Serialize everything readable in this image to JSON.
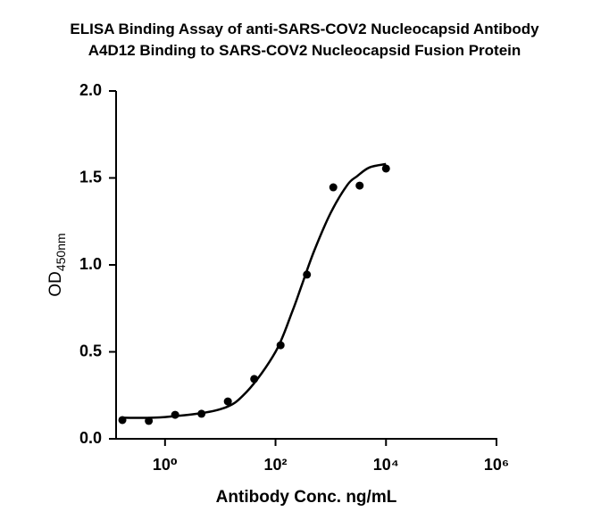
{
  "chart_data": {
    "type": "scatter",
    "title": [
      "ELISA Binding Assay of anti-SARS-COV2 Nucleocapsid Antibody",
      "A4D12 Binding to  SARS-COV2 Nucleocapsid  Fusion Protein"
    ],
    "x_label": "Antibody Conc. ng/mL",
    "y_label": "OD",
    "y_label_subscript": "450nm",
    "x_scale": "log",
    "xlim": [
      0.13,
      1000000
    ],
    "xticks": [
      {
        "value": 1,
        "label": "10⁰"
      },
      {
        "value": 100,
        "label": "10²"
      },
      {
        "value": 10000,
        "label": "10⁴"
      },
      {
        "value": 1000000,
        "label": "10⁶"
      }
    ],
    "ylim": [
      0,
      2
    ],
    "yticks": [
      {
        "value": 0,
        "label": "0.0"
      },
      {
        "value": 0.5,
        "label": "0.5"
      },
      {
        "value": 1,
        "label": "1.0"
      },
      {
        "value": 1.5,
        "label": "1.5"
      },
      {
        "value": 2,
        "label": "2.0"
      }
    ],
    "series": [
      {
        "kind": "points",
        "color": "#000000",
        "x": [
          0.169,
          0.508,
          1.524,
          4.572,
          13.72,
          41.15,
          123.5,
          370.4,
          1111,
          3333,
          10000
        ],
        "values": [
          0.108,
          0.103,
          0.138,
          0.144,
          0.215,
          0.344,
          0.538,
          0.944,
          1.446,
          1.456,
          1.554
        ]
      },
      {
        "kind": "curve",
        "color": "#000000",
        "x": [
          0.169,
          1,
          10,
          30,
          100,
          200,
          300,
          500,
          1000,
          2000,
          3000,
          5000,
          10000
        ],
        "values": [
          0.121,
          0.125,
          0.17,
          0.27,
          0.5,
          0.73,
          0.885,
          1.08,
          1.3,
          1.46,
          1.51,
          1.56,
          1.58
        ]
      }
    ]
  }
}
